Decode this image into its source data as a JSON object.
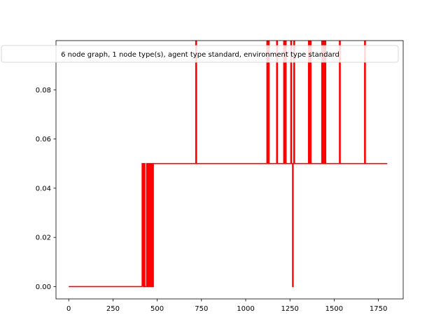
{
  "chart_data": {
    "type": "line",
    "title": "6 node graph, 1 node type(s), agent type standard, environment type standard",
    "xlabel": "",
    "ylabel": "",
    "xlim": [
      -72,
      1890
    ],
    "ylim": [
      -0.005,
      0.1
    ],
    "xticks": [
      0,
      250,
      500,
      750,
      1000,
      1250,
      1500,
      1750
    ],
    "xtick_labels": [
      "0",
      "250",
      "500",
      "750",
      "1000",
      "1250",
      "1500",
      "1750"
    ],
    "yticks": [
      0.0,
      0.02,
      0.04,
      0.06,
      0.08
    ],
    "ytick_labels": [
      "0.00",
      "0.02",
      "0.04",
      "0.06",
      "0.08"
    ],
    "grid": false,
    "series": [
      {
        "color": "#ff0000",
        "segments": [
          [
            [
              0,
              0.0
            ],
            [
              415,
              0.0
            ]
          ],
          [
            [
              415,
              0.0
            ],
            [
              415,
              0.05
            ],
            [
              420,
              0.05
            ],
            [
              420,
              0.0
            ],
            [
              425,
              0.0
            ],
            [
              425,
              0.05
            ],
            [
              430,
              0.05
            ],
            [
              430,
              0.0
            ],
            [
              440,
              0.0
            ],
            [
              440,
              0.05
            ],
            [
              445,
              0.05
            ],
            [
              445,
              0.0
            ],
            [
              450,
              0.0
            ],
            [
              450,
              0.05
            ],
            [
              455,
              0.05
            ],
            [
              455,
              0.0
            ],
            [
              460,
              0.0
            ],
            [
              460,
              0.05
            ],
            [
              465,
              0.05
            ],
            [
              465,
              0.0
            ],
            [
              470,
              0.0
            ],
            [
              470,
              0.05
            ],
            [
              475,
              0.05
            ],
            [
              475,
              0.0
            ],
            [
              478,
              0.0
            ],
            [
              478,
              0.05
            ]
          ],
          [
            [
              478,
              0.05
            ],
            [
              718,
              0.05
            ],
            [
              718,
              0.1
            ],
            [
              722,
              0.1
            ],
            [
              722,
              0.05
            ],
            [
              1120,
              0.05
            ],
            [
              1120,
              0.1
            ],
            [
              1124,
              0.1
            ],
            [
              1124,
              0.05
            ],
            [
              1128,
              0.05
            ],
            [
              1128,
              0.1
            ],
            [
              1132,
              0.1
            ],
            [
              1132,
              0.05
            ],
            [
              1175,
              0.05
            ],
            [
              1175,
              0.1
            ],
            [
              1179,
              0.1
            ],
            [
              1179,
              0.05
            ],
            [
              1215,
              0.05
            ],
            [
              1215,
              0.1
            ],
            [
              1219,
              0.1
            ],
            [
              1219,
              0.05
            ],
            [
              1224,
              0.05
            ],
            [
              1224,
              0.1
            ],
            [
              1228,
              0.1
            ],
            [
              1228,
              0.05
            ],
            [
              1255,
              0.05
            ],
            [
              1255,
              0.1
            ],
            [
              1259,
              0.1
            ],
            [
              1259,
              0.05
            ],
            [
              1265,
              0.05
            ],
            [
              1265,
              0.0
            ],
            [
              1268,
              0.0
            ],
            [
              1268,
              0.05
            ],
            [
              1272,
              0.05
            ],
            [
              1272,
              0.1
            ],
            [
              1276,
              0.1
            ],
            [
              1276,
              0.05
            ],
            [
              1355,
              0.05
            ],
            [
              1355,
              0.1
            ],
            [
              1359,
              0.1
            ],
            [
              1359,
              0.05
            ],
            [
              1365,
              0.05
            ],
            [
              1365,
              0.1
            ],
            [
              1369,
              0.1
            ],
            [
              1369,
              0.05
            ],
            [
              1430,
              0.05
            ],
            [
              1430,
              0.1
            ],
            [
              1434,
              0.1
            ],
            [
              1434,
              0.05
            ],
            [
              1440,
              0.05
            ],
            [
              1440,
              0.1
            ],
            [
              1444,
              0.1
            ],
            [
              1444,
              0.05
            ],
            [
              1448,
              0.05
            ],
            [
              1448,
              0.1
            ],
            [
              1452,
              0.1
            ],
            [
              1452,
              0.05
            ],
            [
              1530,
              0.05
            ],
            [
              1530,
              0.1
            ],
            [
              1534,
              0.1
            ],
            [
              1534,
              0.05
            ],
            [
              1672,
              0.05
            ],
            [
              1672,
              0.1
            ],
            [
              1676,
              0.1
            ],
            [
              1676,
              0.05
            ],
            [
              1800,
              0.05
            ]
          ]
        ]
      }
    ]
  }
}
